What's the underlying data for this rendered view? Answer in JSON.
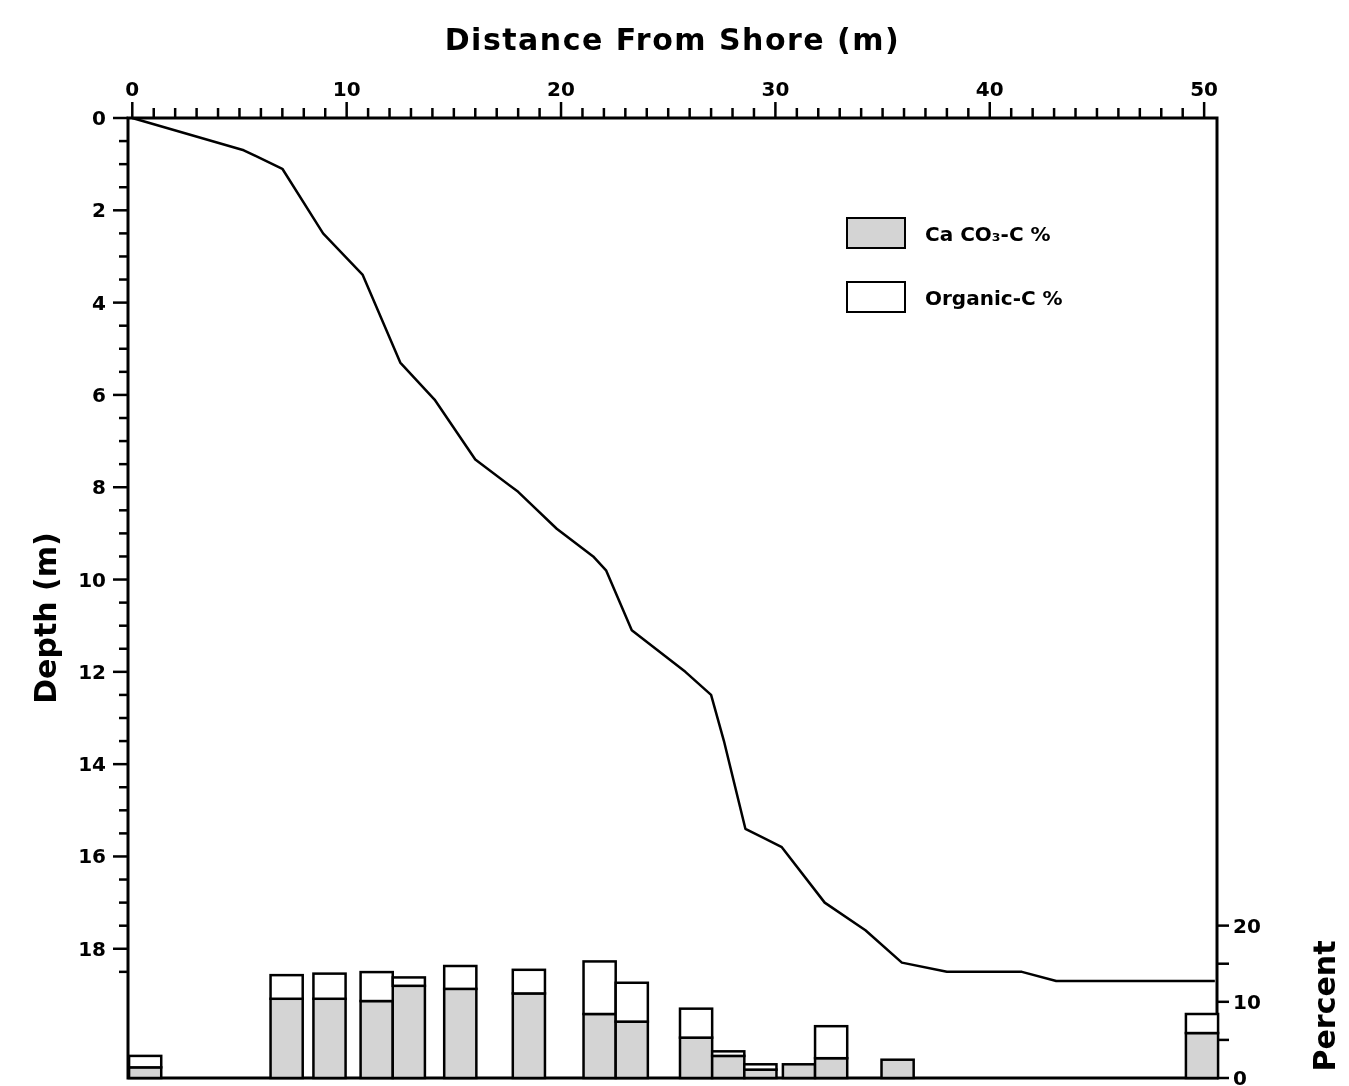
{
  "chart_data": {
    "type": "line",
    "xlabel": "Distance From Shore (m)",
    "ylabel": "Depth (m)",
    "y2label": "Percent",
    "xlim": [
      -0.2,
      50.6
    ],
    "xticks": [
      0,
      {
        "value": 1,
        "label": null
      },
      {
        "value": 2,
        "label": null
      },
      {
        "value": 3,
        "label": null
      },
      {
        "value": 4,
        "label": null
      },
      {
        "value": 5,
        "label": null
      },
      {
        "value": 6,
        "label": null
      },
      {
        "value": 7,
        "label": null
      },
      {
        "value": 8,
        "label": null
      },
      {
        "value": 9,
        "label": null
      },
      10,
      {
        "value": 11,
        "label": null
      },
      {
        "value": 12,
        "label": null
      },
      {
        "value": 13,
        "label": null
      },
      {
        "value": 14,
        "label": null
      },
      {
        "value": 15,
        "label": null
      },
      {
        "value": 16,
        "label": null
      },
      {
        "value": 17,
        "label": null
      },
      {
        "value": 18,
        "label": null
      },
      {
        "value": 19,
        "label": null
      },
      20,
      {
        "value": 21,
        "label": null
      },
      {
        "value": 22,
        "label": null
      },
      {
        "value": 23,
        "label": null
      },
      {
        "value": 24,
        "label": null
      },
      {
        "value": 25,
        "label": null
      },
      {
        "value": 26,
        "label": null
      },
      {
        "value": 27,
        "label": null
      },
      {
        "value": 28,
        "label": null
      },
      {
        "value": 29,
        "label": null
      },
      30,
      {
        "value": 31,
        "label": null
      },
      {
        "value": 32,
        "label": null
      },
      {
        "value": 33,
        "label": null
      },
      {
        "value": 34,
        "label": null
      },
      {
        "value": 35,
        "label": null
      },
      {
        "value": 36,
        "label": null
      },
      {
        "value": 37,
        "label": null
      },
      {
        "value": 38,
        "label": null
      },
      {
        "value": 39,
        "label": null
      },
      40,
      {
        "value": 41,
        "label": null
      },
      {
        "value": 42,
        "label": null
      },
      {
        "value": 43,
        "label": null
      },
      {
        "value": 44,
        "label": null
      },
      {
        "value": 45,
        "label": null
      },
      {
        "value": 46,
        "label": null
      },
      {
        "value": 47,
        "label": null
      },
      {
        "value": 48,
        "label": null
      },
      {
        "value": 49,
        "label": null
      },
      50
    ],
    "ylim": [
      20.8,
      0
    ],
    "yticks": [
      0,
      {
        "value": 0.5,
        "label": null
      },
      {
        "value": 1,
        "label": null
      },
      {
        "value": 1.5,
        "label": null
      },
      2,
      {
        "value": 2.5,
        "label": null
      },
      {
        "value": 3,
        "label": null
      },
      {
        "value": 3.5,
        "label": null
      },
      4,
      {
        "value": 4.5,
        "label": null
      },
      {
        "value": 5,
        "label": null
      },
      {
        "value": 5.5,
        "label": null
      },
      6,
      {
        "value": 6.5,
        "label": null
      },
      {
        "value": 7,
        "label": null
      },
      {
        "value": 7.5,
        "label": null
      },
      8,
      {
        "value": 8.5,
        "label": null
      },
      {
        "value": 9,
        "label": null
      },
      {
        "value": 9.5,
        "label": null
      },
      10,
      {
        "value": 10.5,
        "label": null
      },
      {
        "value": 11,
        "label": null
      },
      {
        "value": 11.5,
        "label": null
      },
      12,
      {
        "value": 12.5,
        "label": null
      },
      {
        "value": 13,
        "label": null
      },
      {
        "value": 13.5,
        "label": null
      },
      14,
      {
        "value": 14.5,
        "label": null
      },
      {
        "value": 15,
        "label": null
      },
      {
        "value": 15.5,
        "label": null
      },
      16,
      {
        "value": 16.5,
        "label": null
      },
      {
        "value": 17,
        "label": null
      },
      {
        "value": 17.5,
        "label": null
      },
      18,
      {
        "value": 18.5,
        "label": null
      }
    ],
    "y2lim": [
      0,
      126
    ],
    "y2ticks": [
      0,
      {
        "value": 5,
        "label": null
      },
      10,
      {
        "value": 15,
        "label": null
      },
      20
    ],
    "stacked": true,
    "legend": "top right",
    "series": [
      {
        "color": "#000000",
        "x": [
          0,
          5.2,
          7.0,
          8.9,
          10.75,
          12.5,
          14.1,
          16.0,
          18.0,
          19.8,
          21.5,
          22.1,
          23.3,
          25.8,
          27.0,
          27.6,
          28.6,
          30.3,
          32.3,
          34.2,
          35.9,
          38.0,
          41.5,
          43.1,
          50.5
        ],
        "values": [
          0,
          0.7,
          1.1,
          2.5,
          3.4,
          5.3,
          6.1,
          7.4,
          8.1,
          8.9,
          9.5,
          9.8,
          11.1,
          12.0,
          12.5,
          13.5,
          15.4,
          15.8,
          17.0,
          17.6,
          18.3,
          18.5,
          18.5,
          18.7,
          18.7
        ]
      },
      {
        "type": "bar",
        "name": "Ca CO₃-C %",
        "color": "#d4d4d4",
        "axis": "y2",
        "x": [
          0.6,
          7.2,
          9.2,
          11.4,
          12.9,
          15.3,
          18.5,
          21.8,
          23.3,
          26.3,
          27.8,
          29.3,
          31.1,
          32.6,
          35.7,
          49.9
        ],
        "values": [
          1.4,
          10.4,
          10.4,
          10.1,
          12.1,
          11.7,
          11.1,
          8.4,
          7.4,
          5.3,
          2.9,
          1.1,
          1.8,
          2.6,
          2.4,
          5.9
        ]
      },
      {
        "type": "bar",
        "name": "Organic-C %",
        "color": "#ffffff",
        "axis": "y2",
        "x": [
          0.6,
          7.2,
          9.2,
          11.4,
          12.9,
          15.3,
          18.5,
          21.8,
          23.3,
          26.3,
          27.8,
          29.3,
          31.1,
          32.6,
          35.7,
          49.9
        ],
        "values": [
          1.5,
          3.1,
          3.3,
          3.8,
          1.1,
          3.0,
          3.1,
          6.9,
          5.1,
          3.8,
          0.6,
          0.7,
          null,
          4.2,
          null,
          2.5
        ]
      }
    ]
  }
}
